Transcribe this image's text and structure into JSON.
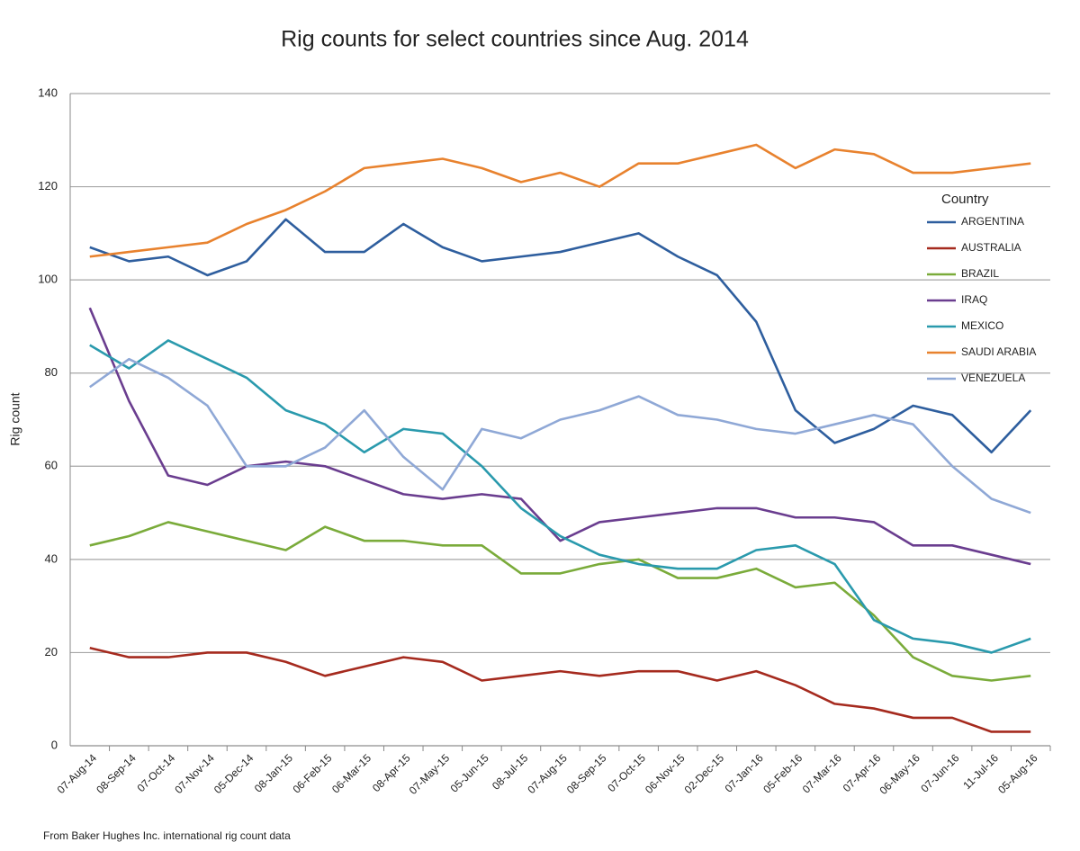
{
  "chart_data": {
    "type": "line",
    "title": "Rig counts for select countries since Aug. 2014",
    "y_label": "Rig count",
    "legend_title": "Country",
    "source": "From Baker Hughes Inc. international rig count data",
    "categories": [
      "07-Aug-14",
      "08-Sep-14",
      "07-Oct-14",
      "07-Nov-14",
      "05-Dec-14",
      "08-Jan-15",
      "06-Feb-15",
      "06-Mar-15",
      "08-Apr-15",
      "07-May-15",
      "05-Jun-15",
      "08-Jul-15",
      "07-Aug-15",
      "08-Sep-15",
      "07-Oct-15",
      "06-Nov-15",
      "02-Dec-15",
      "07-Jan-16",
      "05-Feb-16",
      "07-Mar-16",
      "07-Apr-16",
      "06-May-16",
      "07-Jun-16",
      "11-Jul-16",
      "05-Aug-16"
    ],
    "series": [
      {
        "name": "ARGENTINA",
        "color": "#2e5e9e",
        "values": [
          107,
          104,
          105,
          101,
          104,
          113,
          106,
          106,
          112,
          107,
          104,
          105,
          106,
          108,
          110,
          105,
          101,
          91,
          72,
          65,
          68,
          73,
          71,
          63,
          72
        ]
      },
      {
        "name": "AUSTRALIA",
        "color": "#a52a1e",
        "values": [
          21,
          19,
          19,
          20,
          20,
          18,
          15,
          17,
          19,
          18,
          14,
          15,
          16,
          15,
          16,
          16,
          14,
          16,
          13,
          9,
          8,
          6,
          6,
          3,
          3
        ]
      },
      {
        "name": "BRAZIL",
        "color": "#7aab3a",
        "values": [
          43,
          45,
          48,
          46,
          44,
          42,
          47,
          44,
          44,
          43,
          43,
          37,
          37,
          39,
          40,
          36,
          36,
          38,
          34,
          35,
          28,
          19,
          15,
          14,
          15
        ]
      },
      {
        "name": "IRAQ",
        "color": "#6a3d8f",
        "values": [
          94,
          74,
          58,
          56,
          60,
          61,
          60,
          57,
          54,
          53,
          54,
          53,
          44,
          48,
          49,
          50,
          51,
          51,
          49,
          49,
          48,
          43,
          43,
          41,
          39
        ]
      },
      {
        "name": "MEXICO",
        "color": "#2a9aad",
        "values": [
          86,
          81,
          87,
          83,
          79,
          72,
          69,
          63,
          68,
          67,
          60,
          51,
          45,
          41,
          39,
          38,
          38,
          42,
          43,
          39,
          27,
          23,
          22,
          20,
          23
        ]
      },
      {
        "name": "SAUDI ARABIA",
        "color": "#e8822e",
        "values": [
          105,
          106,
          107,
          108,
          112,
          115,
          119,
          124,
          125,
          126,
          124,
          121,
          123,
          120,
          125,
          125,
          127,
          129,
          124,
          128,
          127,
          123,
          123,
          124,
          125
        ]
      },
      {
        "name": "VENEZUELA",
        "color": "#8fa8d6",
        "values": [
          77,
          83,
          79,
          73,
          60,
          60,
          64,
          72,
          62,
          55,
          68,
          66,
          70,
          72,
          75,
          71,
          70,
          68,
          67,
          69,
          71,
          69,
          60,
          53,
          50
        ]
      }
    ],
    "ylim": [
      0,
      140
    ],
    "yticks": [
      0,
      20,
      40,
      60,
      80,
      100,
      120,
      140
    ],
    "grid": true
  }
}
